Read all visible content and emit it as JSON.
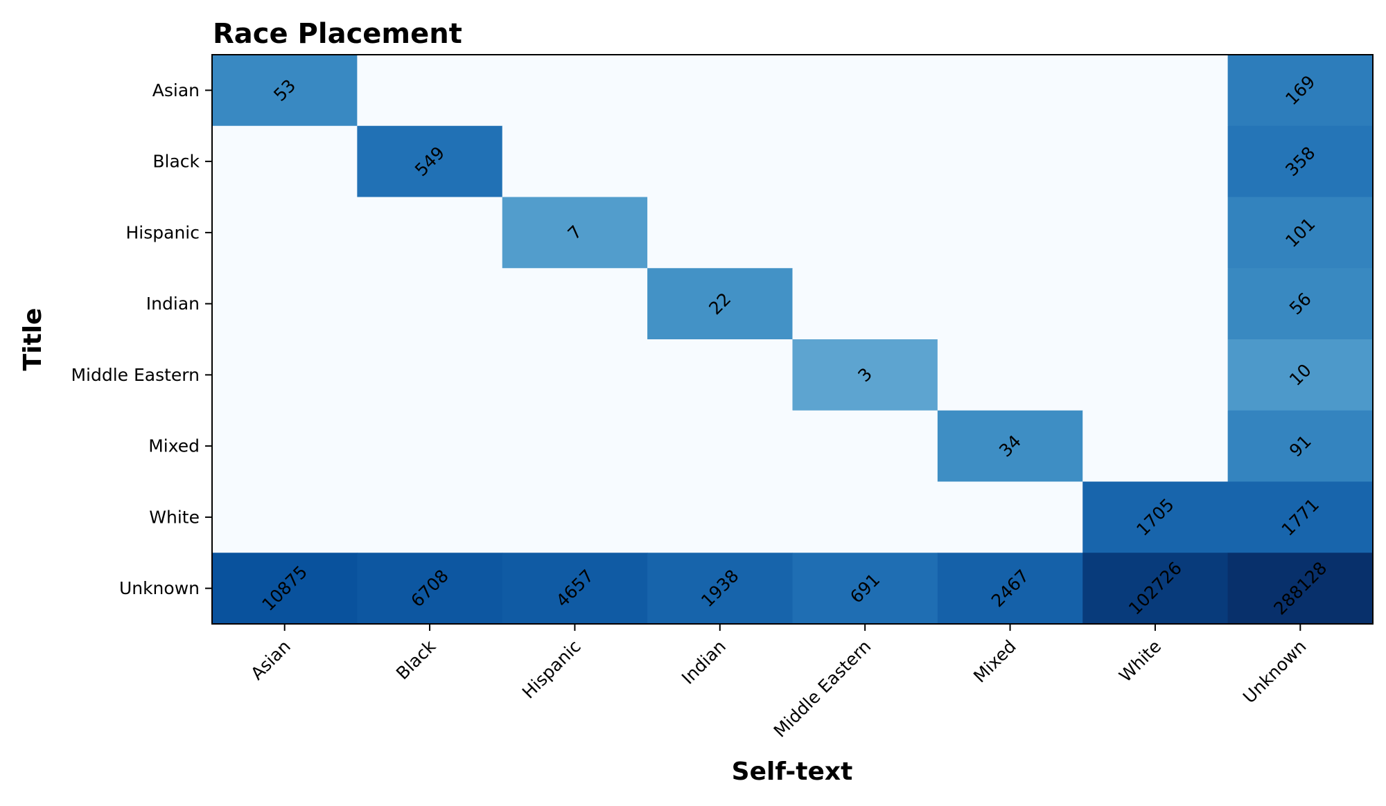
{
  "chart_data": {
    "type": "heatmap",
    "title": "Race Placement",
    "xlabel": "Self-text",
    "ylabel": "Title",
    "x_categories": [
      "Asian",
      "Black",
      "Hispanic",
      "Indian",
      "Middle Eastern",
      "Mixed",
      "White",
      "Unknown"
    ],
    "y_categories": [
      "Asian",
      "Black",
      "Hispanic",
      "Indian",
      "Middle Eastern",
      "Mixed",
      "White",
      "Unknown"
    ],
    "values": [
      [
        53,
        null,
        null,
        null,
        null,
        null,
        null,
        169
      ],
      [
        null,
        549,
        null,
        null,
        null,
        null,
        null,
        358
      ],
      [
        null,
        null,
        7,
        null,
        null,
        null,
        null,
        101
      ],
      [
        null,
        null,
        null,
        22,
        null,
        null,
        null,
        56
      ],
      [
        null,
        null,
        null,
        null,
        3,
        null,
        null,
        10
      ],
      [
        null,
        null,
        null,
        null,
        null,
        34,
        null,
        91
      ],
      [
        null,
        null,
        null,
        null,
        null,
        null,
        1705,
        1771
      ],
      [
        10875,
        6708,
        4657,
        1938,
        691,
        2467,
        102726,
        288128
      ]
    ],
    "colormap": "Blues",
    "color_scale": "log",
    "empty_cell_color": "#f7fbff",
    "grid": false,
    "legend": "none"
  }
}
